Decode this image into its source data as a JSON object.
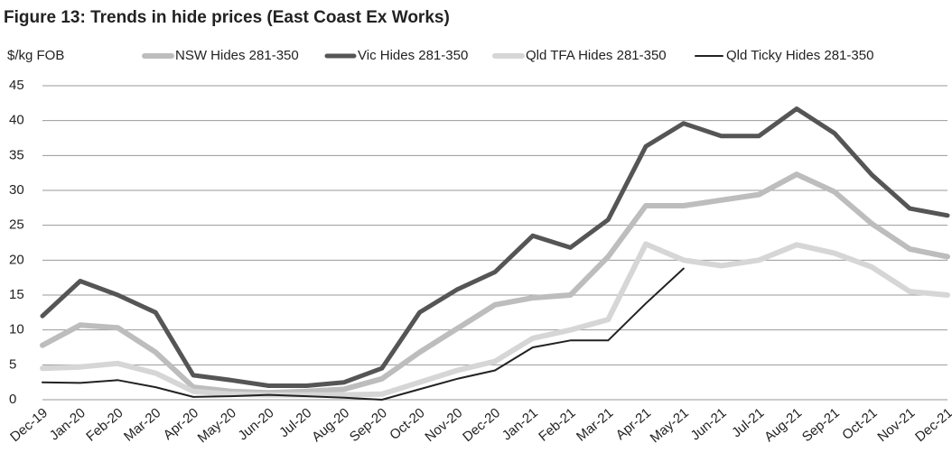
{
  "chart_data": {
    "type": "line",
    "title": "Figure 13: Trends in hide prices (East Coast Ex Works)",
    "y_label": "$/kg FOB",
    "categories": [
      "Dec-19",
      "Jan-20",
      "Feb-20",
      "Mar-20",
      "Apr-20",
      "May-20",
      "Jun-20",
      "Jul-20",
      "Aug-20",
      "Sep-20",
      "Oct-20",
      "Nov-20",
      "Dec-20",
      "Jan-21",
      "Feb-21",
      "Mar-21",
      "Apr-21",
      "May-21",
      "Jun-21",
      "Jul-21",
      "Aug-21",
      "Sep-21",
      "Oct-21",
      "Nov-21",
      "Dec-21"
    ],
    "series": [
      {
        "name": "NSW Hides 281-350",
        "color": "#bdbdbd",
        "values": [
          7.8,
          10.7,
          10.3,
          6.8,
          1.8,
          1.2,
          1.0,
          1.2,
          1.5,
          3,
          6.8,
          10.2,
          13.6,
          14.6,
          15,
          20.5,
          27.8,
          27.8,
          28.6,
          29.4,
          32.3,
          29.8,
          25.2,
          21.6,
          20.5
        ]
      },
      {
        "name": "Vic Hides 281-350",
        "color": "#555555",
        "values": [
          12,
          17,
          15,
          12.5,
          3.5,
          2.8,
          2,
          2,
          2.5,
          4.5,
          12.5,
          15.8,
          18.3,
          23.5,
          21.8,
          25.8,
          36.3,
          39.6,
          37.8,
          37.8,
          41.7,
          38.2,
          32.2,
          27.4,
          26.4
        ]
      },
      {
        "name": "Qld TFA Hides 281-350",
        "color": "#d6d6d6",
        "values": [
          4.5,
          4.7,
          5.2,
          3.8,
          1.2,
          0.8,
          0.7,
          0.7,
          0.7,
          0.8,
          2.5,
          4.2,
          5.5,
          8.8,
          10,
          11.5,
          22.3,
          20,
          19.2,
          20,
          22.2,
          21,
          19,
          15.5,
          15
        ]
      },
      {
        "name": "Qld Ticky Hides 281-350",
        "color": "#222222",
        "values": [
          2.5,
          2.4,
          2.8,
          1.8,
          0.4,
          0.5,
          0.7,
          0.5,
          0.3,
          0,
          1.5,
          3,
          4.2,
          7.5,
          8.5,
          8.5,
          13.8,
          18.8,
          null,
          null,
          null,
          null,
          null,
          null,
          null
        ]
      }
    ],
    "ylim": [
      0,
      45
    ],
    "yticks": [
      0,
      5,
      10,
      15,
      20,
      25,
      30,
      35,
      40,
      45
    ],
    "grid": true,
    "legend": "top"
  }
}
